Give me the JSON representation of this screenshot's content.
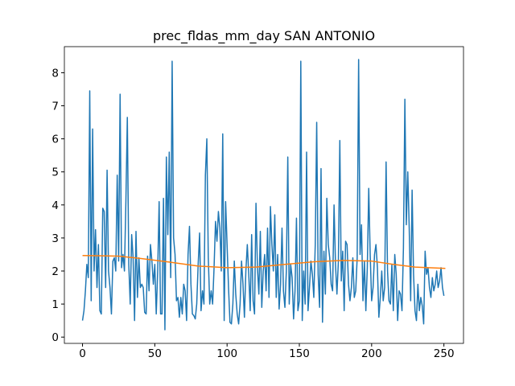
{
  "chart_data": {
    "type": "line",
    "title": "prec_fldas_mm_day SAN ANTONIO",
    "xlim": [
      -12.55,
      263.55
    ],
    "ylim": [
      -0.19,
      8.79
    ],
    "xticks": [
      0,
      50,
      100,
      150,
      200,
      250
    ],
    "yticks": [
      0,
      1,
      2,
      3,
      4,
      5,
      6,
      7,
      8
    ],
    "series": [
      {
        "color": "#1f77b4",
        "values": [
          0.5,
          0.8,
          1.4,
          2.2,
          1.8,
          7.45,
          1.1,
          6.3,
          2.0,
          3.25,
          1.5,
          2.8,
          0.8,
          0.7,
          3.9,
          3.8,
          1.5,
          5.05,
          2.0,
          1.5,
          0.7,
          2.3,
          2.4,
          2.0,
          4.9,
          2.3,
          7.35,
          2.1,
          2.5,
          2.0,
          4.1,
          6.65,
          2.2,
          1.0,
          3.1,
          2.4,
          0.5,
          3.2,
          1.2,
          2.4,
          1.5,
          1.6,
          1.5,
          0.75,
          0.7,
          2.45,
          1.4,
          2.8,
          2.3,
          1.6,
          2.2,
          0.7,
          2.0,
          4.1,
          0.7,
          0.7,
          4.2,
          0.22,
          5.45,
          3.1,
          5.6,
          1.8,
          8.35,
          3.0,
          2.5,
          1.1,
          1.2,
          0.6,
          1.2,
          0.7,
          1.6,
          1.4,
          0.5,
          2.5,
          3.35,
          1.6,
          0.7,
          0.65,
          0.55,
          1.0,
          2.2,
          3.15,
          0.8,
          1.4,
          1.0,
          4.9,
          6.0,
          2.4,
          1.0,
          1.4,
          1.0,
          2.1,
          3.5,
          2.9,
          3.8,
          3.3,
          2.0,
          6.15,
          0.5,
          4.1,
          2.8,
          1.5,
          0.45,
          0.4,
          1.0,
          2.3,
          1.3,
          0.7,
          0.4,
          1.0,
          2.3,
          1.6,
          0.6,
          2.0,
          2.8,
          1.9,
          0.8,
          3.1,
          1.1,
          0.7,
          4.05,
          2.1,
          1.3,
          3.2,
          0.9,
          2.0,
          2.5,
          1.4,
          3.3,
          1.2,
          3.95,
          2.8,
          2.0,
          3.7,
          1.2,
          2.5,
          0.85,
          1.6,
          3.3,
          1.4,
          0.9,
          2.0,
          5.45,
          1.0,
          2.2,
          1.8,
          0.55,
          1.4,
          3.6,
          0.8,
          1.1,
          8.35,
          0.5,
          2.0,
          1.0,
          5.6,
          0.8,
          1.5,
          2.3,
          1.9,
          1.2,
          2.8,
          6.5,
          1.9,
          0.9,
          5.1,
          0.45,
          2.6,
          1.3,
          4.2,
          2.8,
          2.4,
          1.6,
          1.4,
          4.0,
          2.2,
          1.3,
          2.3,
          5.95,
          1.7,
          2.6,
          0.8,
          2.9,
          2.8,
          1.6,
          1.1,
          1.5,
          2.4,
          1.2,
          1.4,
          2.4,
          8.4,
          2.5,
          3.4,
          1.1,
          2.3,
          0.8,
          2.1,
          4.5,
          2.5,
          1.1,
          1.5,
          2.5,
          2.8,
          2.1,
          0.6,
          1.2,
          2.0,
          1.1,
          1.5,
          5.3,
          2.0,
          1.1,
          1.0,
          2.2,
          0.8,
          2.5,
          1.9,
          0.5,
          1.4,
          1.3,
          0.8,
          2.7,
          7.2,
          3.4,
          5.0,
          3.3,
          1.1,
          4.45,
          1.9,
          0.8,
          0.5,
          1.6,
          0.8,
          1.2,
          0.95,
          0.4,
          2.6,
          1.9,
          2.1,
          1.5,
          1.2,
          1.8,
          1.4,
          1.6,
          2.0,
          1.5,
          1.7,
          2.1,
          1.5,
          1.25
        ]
      },
      {
        "color": "#ff7f0e",
        "x": [
          0,
          25,
          40,
          60,
          80,
          100,
          120,
          140,
          160,
          180,
          200,
          215,
          230,
          251
        ],
        "values": [
          2.47,
          2.45,
          2.38,
          2.27,
          2.15,
          2.1,
          2.12,
          2.2,
          2.28,
          2.32,
          2.3,
          2.2,
          2.12,
          2.08
        ]
      }
    ]
  }
}
